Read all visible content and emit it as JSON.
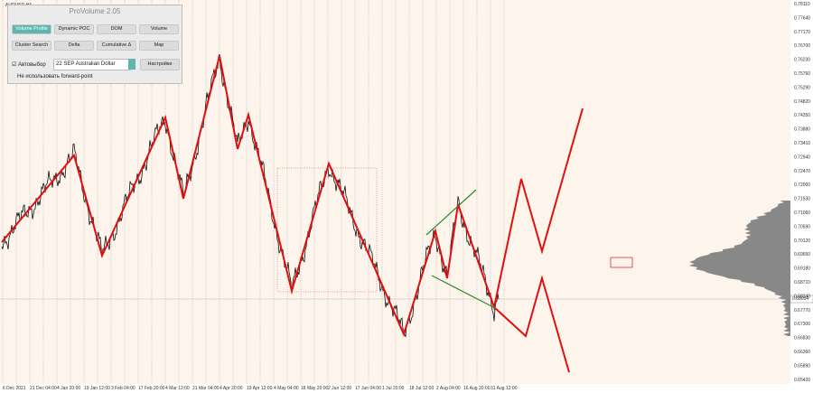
{
  "symbol": "AUDUSD,H4",
  "panel": {
    "title": "ProVolume 2.05",
    "buttons": [
      "Volume Profile",
      "Dynamic POC",
      "DOM",
      "Volume",
      "Cluster Search",
      "Delta",
      "Cumulative Δ",
      "Map"
    ],
    "auto_select": "Автовыбор",
    "instrument": "22 SEP Australian Dollar",
    "settings": "Настройки",
    "forward_point": "Не использовать forward-point"
  },
  "price_axis": [
    "0.78110",
    "0.77640",
    "0.77170",
    "0.76700",
    "0.76230",
    "0.75760",
    "0.75290",
    "0.74820",
    "0.74350",
    "0.73880",
    "0.73410",
    "0.72940",
    "0.72470",
    "0.72000",
    "0.71530",
    "0.71060",
    "0.70590",
    "0.70120",
    "0.69650",
    "0.69180",
    "0.68710",
    "0.68240",
    "0.67770",
    "0.67300",
    "0.66830",
    "0.66360",
    "0.65890",
    "0.65420"
  ],
  "current_price": "0.68034",
  "time_axis": [
    "6 Dec 2021",
    "21 Dec 04:00",
    "4 Jan 20:00",
    "19 Jan 12:00",
    "3 Feb 04:00",
    "17 Feb 20:00",
    "4 Mar 12:00",
    "21 Mar 04:00",
    "4 Apr 20:00",
    "19 Apr 12:00",
    "4 May 04:00",
    "18 May 20:00",
    "2 Jun 12:00",
    "17 Jun 04:00",
    "1 Jul 20:00",
    "18 Jul 12:00",
    "2 Aug 04:00",
    "16 Aug 20:00",
    "31 Aug 12:00"
  ]
}
